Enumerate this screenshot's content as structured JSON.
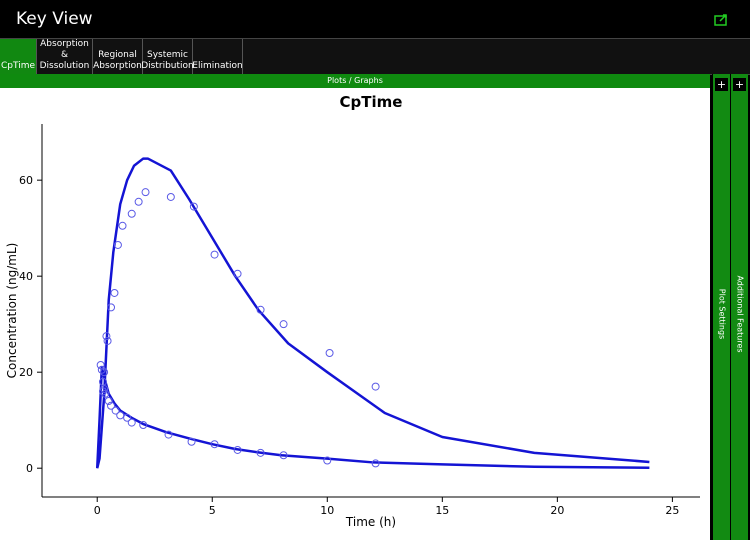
{
  "header": {
    "title": "Key View"
  },
  "tabs": [
    "CpTime",
    "Absorption & Dissolution",
    "Regional Absorption",
    "Systemic Distribution",
    "Elimination"
  ],
  "section": "Plots / Graphs",
  "side_panels": [
    {
      "button": "+",
      "label": "Plot Settings"
    },
    {
      "button": "+",
      "label": "Additional Features"
    }
  ],
  "chart_data": {
    "type": "line",
    "title": "CpTime",
    "x_label": "Time (h)",
    "y_label": "Concentration (ng/mL)",
    "xlim": [
      -2.4,
      26.2
    ],
    "ylim": [
      -6,
      71.7
    ],
    "xticks": [
      0,
      5,
      10,
      15,
      20,
      25
    ],
    "yticks": [
      0,
      20,
      40,
      60
    ],
    "series": [
      {
        "type": "line",
        "color": "#1414d4",
        "x": [
          0,
          0.1,
          0.3,
          0.5,
          0.7,
          1,
          1.3,
          1.6,
          2,
          2.2,
          3.2,
          4,
          5,
          6,
          7,
          8.3,
          10,
          12.5,
          15,
          19,
          24
        ],
        "values": [
          0,
          2,
          15,
          35,
          45,
          55,
          60,
          63,
          64.5,
          64.5,
          62,
          56,
          48,
          40,
          33,
          26,
          20,
          11.5,
          6.5,
          3.2,
          1.3
        ]
      },
      {
        "type": "line",
        "color": "#1414d4",
        "x": [
          0,
          0.1,
          0.2,
          0.3,
          0.5,
          0.75,
          1,
          1.5,
          2,
          3,
          4,
          5,
          6,
          7,
          8,
          10,
          12,
          15,
          19,
          24
        ],
        "values": [
          0,
          10,
          21,
          19,
          15.5,
          13.5,
          12,
          10.5,
          9.2,
          7.5,
          6.2,
          5,
          4,
          3.3,
          2.7,
          2,
          1.2,
          0.8,
          0.3,
          0.1
        ]
      },
      {
        "type": "scatter",
        "color": "#5a5ae6",
        "x": [
          0.25,
          0.3,
          0.4,
          0.45,
          0.6,
          0.75,
          0.9,
          1.1,
          1.5,
          1.8,
          2.1,
          3.2,
          4.2,
          5.1,
          6.1,
          7.1,
          8.1,
          10.1,
          12.1
        ],
        "values": [
          16,
          20,
          27.5,
          26.5,
          33.5,
          36.5,
          46.5,
          50.5,
          53,
          55.5,
          57.5,
          56.5,
          54.5,
          44.5,
          40.5,
          33,
          30,
          24,
          17
        ]
      },
      {
        "type": "scatter",
        "color": "#5a5ae6",
        "x": [
          0.15,
          0.2,
          0.25,
          0.3,
          0.35,
          0.5,
          0.6,
          0.8,
          1,
          1.3,
          1.5,
          2,
          3.1,
          4.1,
          5.1,
          6.1,
          7.1,
          8.1,
          10,
          12.1
        ],
        "values": [
          21.5,
          20.5,
          18,
          16.5,
          15.5,
          14,
          13,
          12,
          11,
          10.5,
          9.5,
          9,
          7,
          5.5,
          5,
          3.8,
          3.2,
          2.7,
          1.6,
          1
        ]
      }
    ]
  }
}
